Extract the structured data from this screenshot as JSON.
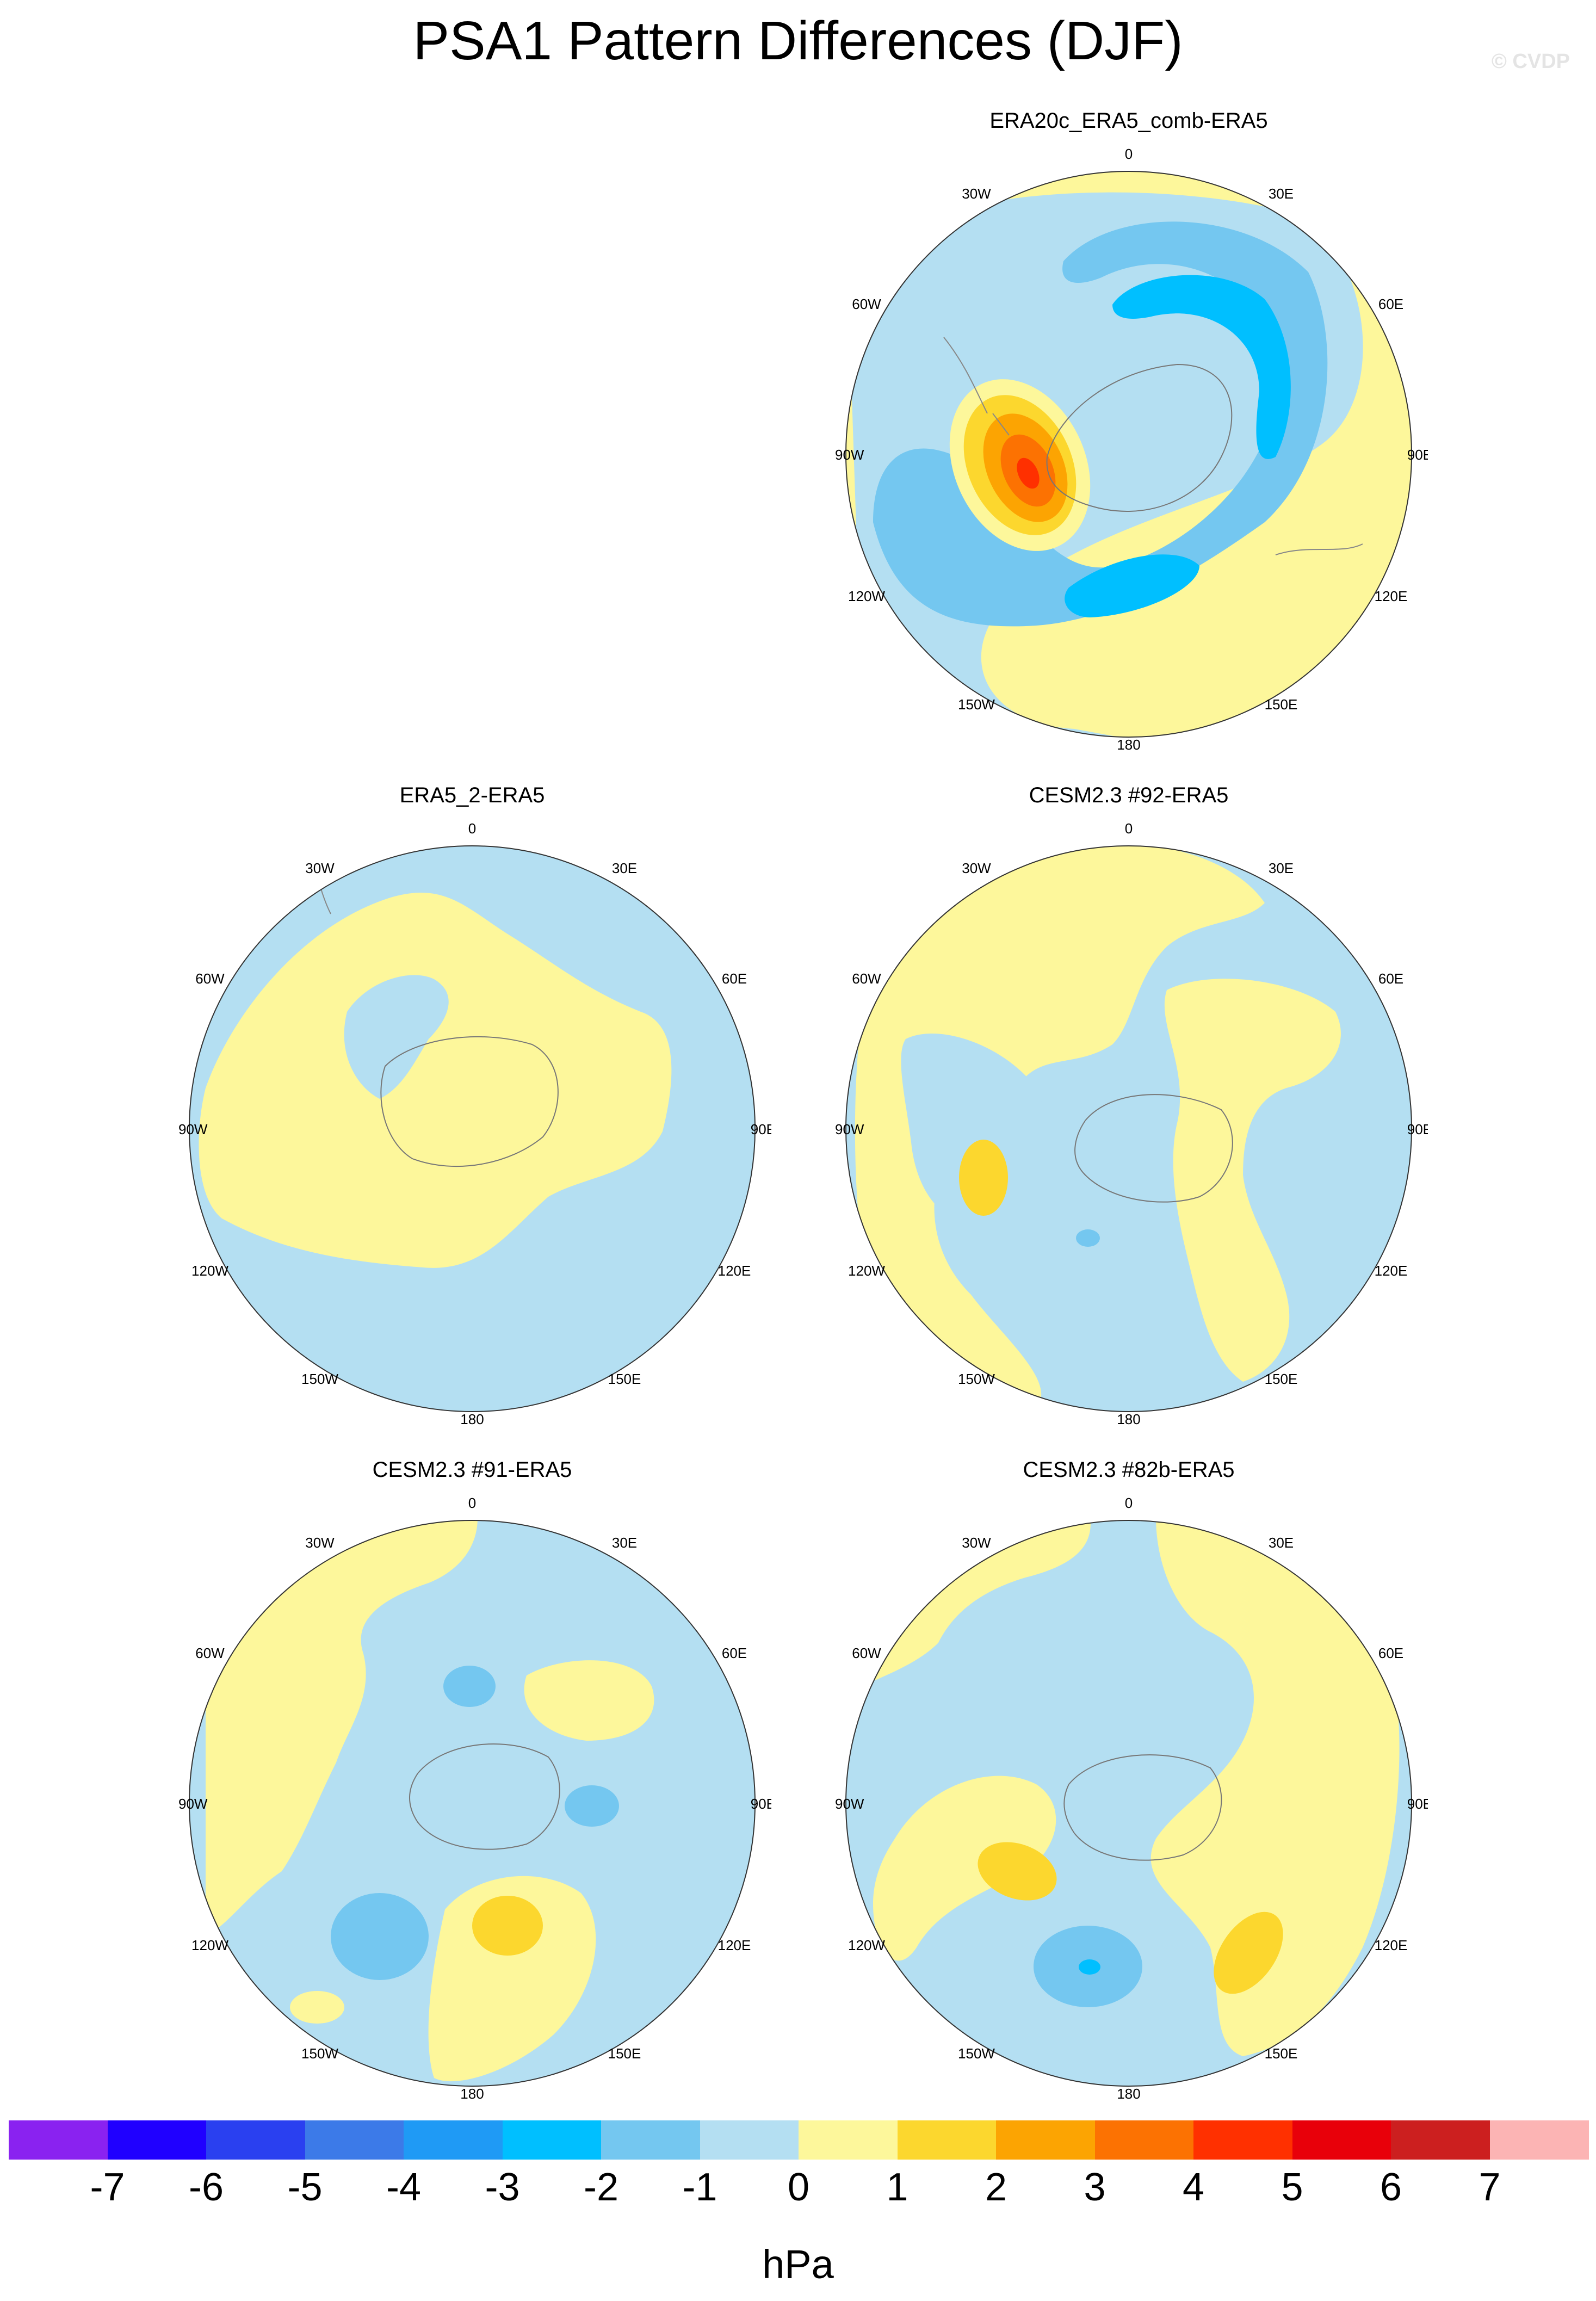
{
  "title": "PSA1 Pattern Differences (DJF)",
  "credit": "© CVDP",
  "panels": [
    {
      "title": "ERA20c_ERA5_comb-ERA5"
    },
    {
      "title": "ERA5_2-ERA5"
    },
    {
      "title": "CESM2.3 #92-ERA5"
    },
    {
      "title": "CESM2.3 #91-ERA5"
    },
    {
      "title": "CESM2.3 #82b-ERA5"
    }
  ],
  "lon_labels": {
    "top": "0",
    "ne30": "30E",
    "ne60": "60E",
    "east": "90E",
    "se120": "120E",
    "se150": "150E",
    "bottom": "180",
    "sw150": "150W",
    "sw120": "120W",
    "west": "90W",
    "nw60": "60W",
    "nw30": "30W"
  },
  "colorbar": {
    "units": "hPa",
    "labels": [
      "-7",
      "-6",
      "-5",
      "-4",
      "-3",
      "-2",
      "-1",
      "0",
      "1",
      "2",
      "3",
      "4",
      "5",
      "6",
      "7"
    ],
    "colors": [
      "#8a22f0",
      "#2000ff",
      "#2a40f0",
      "#3c7ae8",
      "#1f9af5",
      "#00bfff",
      "#74c7f0",
      "#b4dff2",
      "#fdf79b",
      "#fcd72e",
      "#fca402",
      "#fc7202",
      "#ff3000",
      "#e8000a",
      "#cc1f1f",
      "#fcb4b4"
    ]
  }
}
